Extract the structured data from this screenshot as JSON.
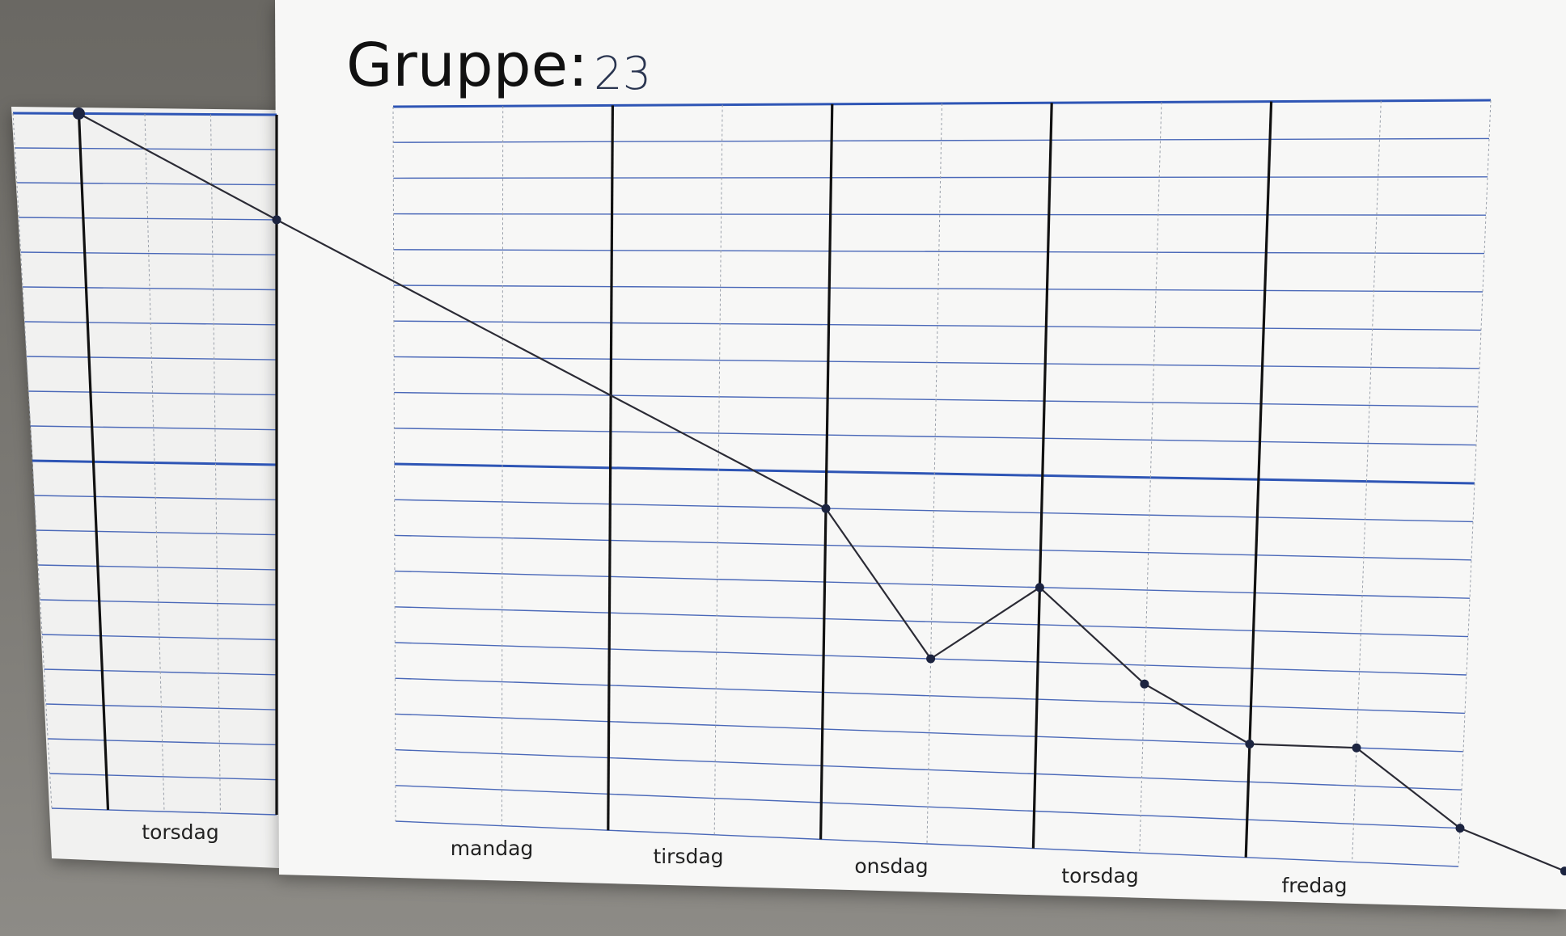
{
  "title": "Gruppe:",
  "group_number": "23",
  "chart_data": {
    "type": "line",
    "x_days_previous_week": [
      "torsdag"
    ],
    "x_days_current_week": [
      "mandag",
      "tirsdag",
      "onsdag",
      "torsdag",
      "fredag"
    ],
    "rows_per_panel": 20,
    "ylim": [
      0,
      20
    ],
    "grid": true,
    "series": [
      {
        "values": [
          {
            "x": 0.0,
            "y": 20.0
          },
          {
            "x": 1.0,
            "y": 17.0
          },
          {
            "x": 3.0,
            "y": 9.0
          },
          {
            "x": 3.5,
            "y": 5.0
          },
          {
            "x": 4.0,
            "y": 7.0
          },
          {
            "x": 4.5,
            "y": 4.5
          },
          {
            "x": 5.0,
            "y": 3.0
          },
          {
            "x": 5.5,
            "y": 3.0
          },
          {
            "x": 6.0,
            "y": 1.0
          },
          {
            "x": 6.5,
            "y": 0.0
          }
        ]
      }
    ]
  }
}
